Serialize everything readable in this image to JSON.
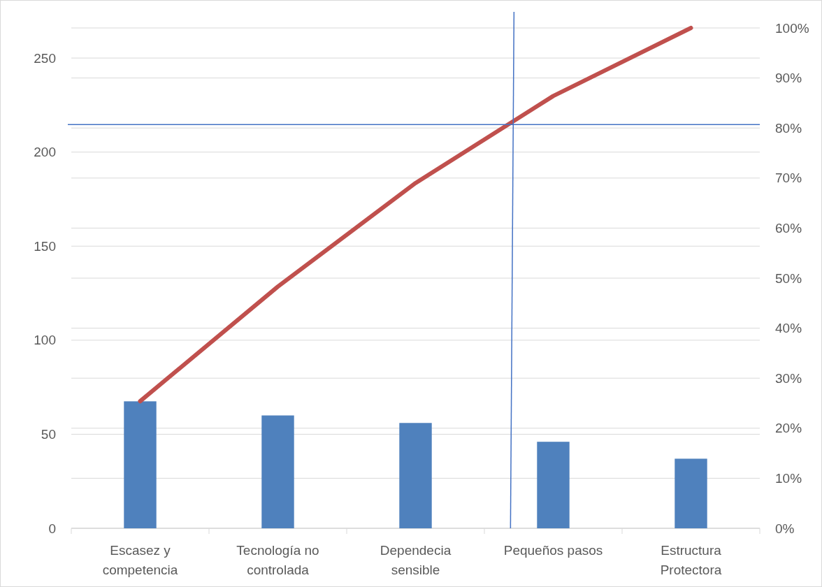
{
  "chart_data": {
    "type": "bar",
    "categories": [
      "Escasez y competencia",
      "Tecnología no controlada",
      "Dependecia sensible",
      "Pequeños pasos",
      "Estructura Protectora"
    ],
    "series": [
      {
        "color": "#4f81bd",
        "values": [
          67.5,
          60,
          56,
          46,
          37
        ]
      },
      {
        "type": "line",
        "axis": "y2",
        "color": "#c0504d",
        "values": [
          25.4,
          48.3,
          69,
          86.4,
          100
        ]
      }
    ],
    "ylim": [
      0,
      266
    ],
    "yticks": [
      0,
      50,
      100,
      150,
      200,
      250
    ],
    "y2lim": [
      0,
      100
    ],
    "y2ticks": [
      {
        "value": 0,
        "label": "0%"
      },
      {
        "value": 10,
        "label": "10%"
      },
      {
        "value": 20,
        "label": "20%"
      },
      {
        "value": 30,
        "label": "30%"
      },
      {
        "value": 40,
        "label": "40%"
      },
      {
        "value": 50,
        "label": "50%"
      },
      {
        "value": 60,
        "label": "60%"
      },
      {
        "value": 70,
        "label": "70%"
      },
      {
        "value": 80,
        "label": "80%"
      },
      {
        "value": 90,
        "label": "90%"
      },
      {
        "value": 100,
        "label": "100%"
      }
    ],
    "grid": true,
    "marker": "none",
    "line_style": "solid",
    "ref_lines": [
      {
        "axis": "y2",
        "value": 80.7,
        "color": "#4472c4"
      }
    ]
  }
}
